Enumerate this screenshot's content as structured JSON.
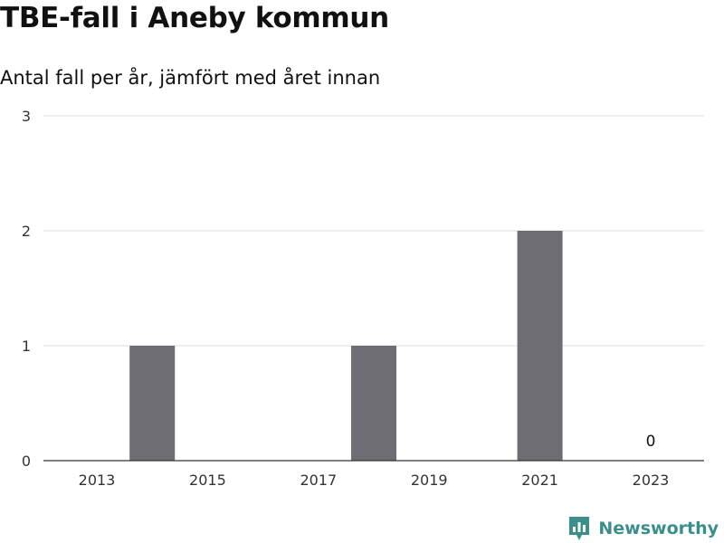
{
  "title": "TBE-fall i Aneby kommun",
  "subtitle": "Antal fall per år, jämfört med året innan",
  "brand": {
    "name": "Newsworthy",
    "icon": "newsworthy-logo-icon",
    "color": "#3a8f8b"
  },
  "chart_data": {
    "type": "bar",
    "title": "TBE-fall i Aneby kommun",
    "subtitle": "Antal fall per år, jämfört med året innan",
    "x": [
      2013,
      2014,
      2015,
      2016,
      2017,
      2018,
      2019,
      2020,
      2021,
      2022,
      2023
    ],
    "values": [
      0,
      1,
      0,
      0,
      0,
      1,
      0,
      0,
      2,
      0,
      0
    ],
    "x_ticks": [
      "2013",
      "2015",
      "2017",
      "2019",
      "2021",
      "2023"
    ],
    "y_ticks": [
      "0",
      "1",
      "2",
      "3"
    ],
    "ylim": [
      0,
      3
    ],
    "grid": true,
    "bar_color": "#6e6d73",
    "data_labels": [
      {
        "x": 2023,
        "text": "0"
      }
    ]
  }
}
